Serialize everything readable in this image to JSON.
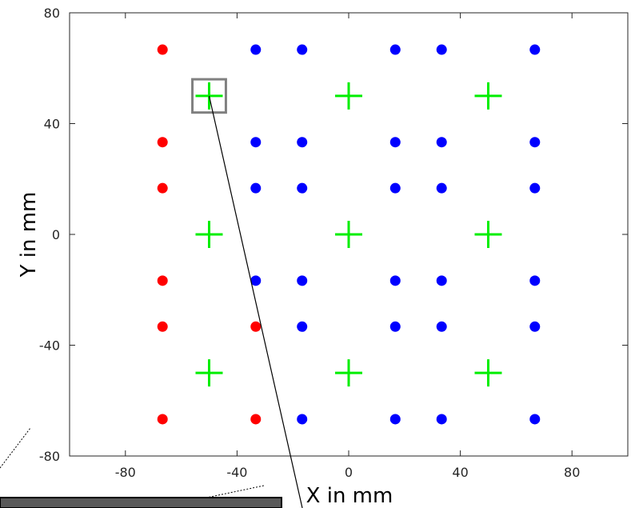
{
  "chart_data": {
    "type": "scatter",
    "xlabel": "X in mm",
    "ylabel": "Y in mm",
    "xlim": [
      -100,
      100
    ],
    "ylim": [
      -80,
      80
    ],
    "x_ticks": [
      "-80",
      "-40",
      "0",
      "40",
      "80"
    ],
    "y_ticks": [
      "80",
      "40",
      "0",
      "-40",
      "-80"
    ],
    "grid": false,
    "colors": {
      "red": "#ff0000",
      "blue": "#0000ff",
      "green": "#00ee00",
      "box": "#808080"
    },
    "series": [
      {
        "marker": "dot",
        "color": "#ff0000",
        "points": [
          [
            -66.7,
            66.7
          ],
          [
            -66.7,
            33.3
          ],
          [
            -66.7,
            16.7
          ],
          [
            -66.7,
            -16.7
          ],
          [
            -66.7,
            -33.3
          ],
          [
            -66.7,
            -66.7
          ],
          [
            -33.3,
            -33.3
          ],
          [
            -33.3,
            -66.7
          ]
        ]
      },
      {
        "marker": "dot",
        "color": "#0000ff",
        "points": [
          [
            -33.3,
            66.7
          ],
          [
            -16.7,
            66.7
          ],
          [
            16.7,
            66.7
          ],
          [
            33.3,
            66.7
          ],
          [
            66.7,
            66.7
          ],
          [
            -33.3,
            33.3
          ],
          [
            -16.7,
            33.3
          ],
          [
            16.7,
            33.3
          ],
          [
            33.3,
            33.3
          ],
          [
            66.7,
            33.3
          ],
          [
            -33.3,
            16.7
          ],
          [
            -16.7,
            16.7
          ],
          [
            16.7,
            16.7
          ],
          [
            33.3,
            16.7
          ],
          [
            66.7,
            16.7
          ],
          [
            -33.3,
            -16.7
          ],
          [
            -16.7,
            -16.7
          ],
          [
            16.7,
            -16.7
          ],
          [
            33.3,
            -16.7
          ],
          [
            66.7,
            -16.7
          ],
          [
            -16.7,
            -33.3
          ],
          [
            16.7,
            -33.3
          ],
          [
            33.3,
            -33.3
          ],
          [
            66.7,
            -33.3
          ],
          [
            -16.7,
            -66.7
          ],
          [
            16.7,
            -66.7
          ],
          [
            33.3,
            -66.7
          ],
          [
            66.7,
            -66.7
          ]
        ]
      },
      {
        "marker": "plus",
        "color": "#00ee00",
        "points": [
          [
            -50,
            50
          ],
          [
            0,
            50
          ],
          [
            50,
            50
          ],
          [
            -50,
            0
          ],
          [
            0,
            0
          ],
          [
            50,
            0
          ],
          [
            -50,
            -50
          ],
          [
            0,
            -50
          ],
          [
            50,
            -50
          ]
        ]
      }
    ],
    "highlight_box": {
      "center": [
        -50,
        50
      ],
      "half_size": 6
    },
    "pointer_line_from": [
      -50,
      50
    ]
  }
}
